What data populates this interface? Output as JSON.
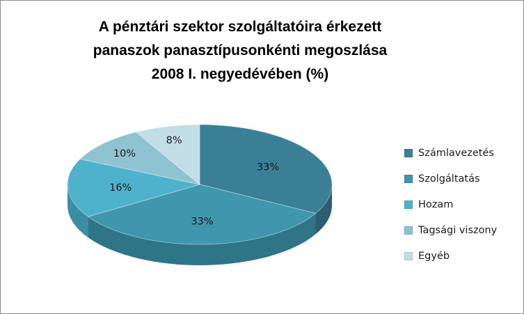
{
  "chart_data": {
    "type": "pie",
    "title_lines": [
      "A pénztári szektor szolgáltatóira érkezett",
      "panaszok panasztípusonkénti  megoszlása",
      "2008 I. negyedévében (%)"
    ],
    "slices": [
      {
        "name": "Számlavezetés",
        "value": 33,
        "label": "33%",
        "color": "#3a7f95",
        "side": "#2b5f70"
      },
      {
        "name": "Szolgáltatás",
        "value": 33,
        "label": "33%",
        "color": "#4096ad",
        "side": "#2f7588"
      },
      {
        "name": "Hozam",
        "value": 16,
        "label": "16%",
        "color": "#4fb2cc",
        "side": "#3a8da4"
      },
      {
        "name": "Tagsági viszony",
        "value": 10,
        "label": "10%",
        "color": "#8fc3d1",
        "side": "#6fa2b1"
      },
      {
        "name": "Egyéb",
        "value": 8,
        "label": "8%",
        "color": "#c2dde6",
        "side": "#9fbfca"
      }
    ],
    "legend_position": "right",
    "style": "3d-pie"
  }
}
